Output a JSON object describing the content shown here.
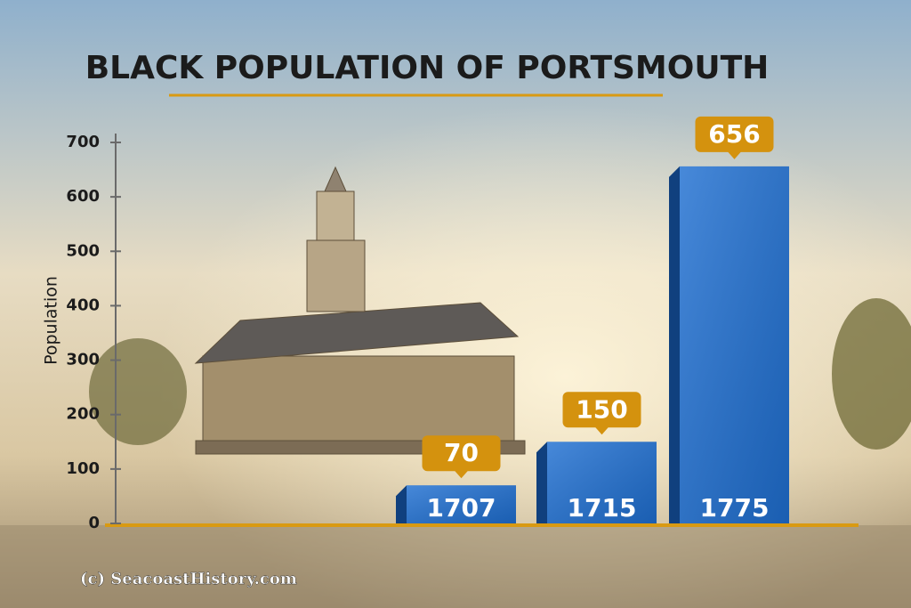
{
  "chart_data": {
    "type": "bar",
    "title": "BLACK POPULATION OF PORTSMOUTH",
    "y_label": "Population",
    "credit": "(c) SeacoastHistory.com",
    "categories": [
      "1707",
      "1715",
      "1775"
    ],
    "values": [
      70,
      150,
      656
    ],
    "color": "#1f6fd1",
    "label_color": "#d4920e",
    "ylim": [
      0,
      700
    ],
    "yticks": [
      0,
      100,
      200,
      300,
      400,
      500,
      600,
      700
    ],
    "grid": false
  }
}
